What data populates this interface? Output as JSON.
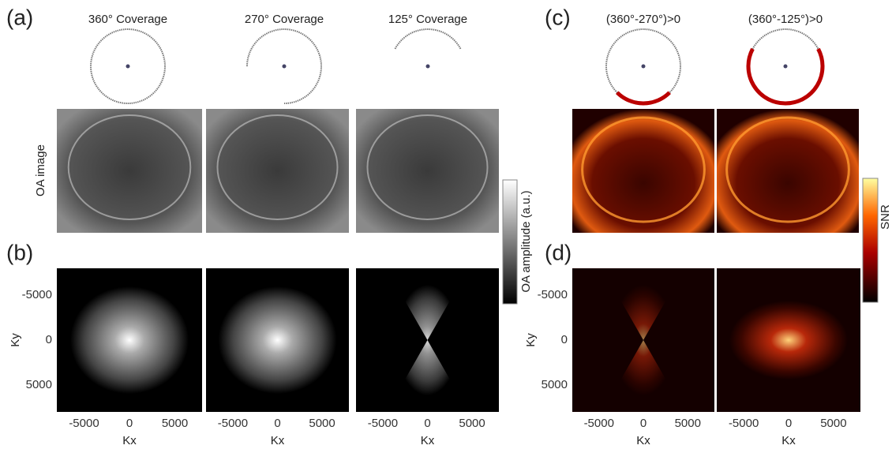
{
  "panel_labels": [
    "(a)",
    "(b)",
    "(c)",
    "(d)"
  ],
  "columns": [
    {
      "title": "360° Coverage"
    },
    {
      "title": "270° Coverage"
    },
    {
      "title": "125° Coverage"
    },
    {
      "title": "(360°-270°)>0"
    },
    {
      "title": "(360°-125°)>0"
    }
  ],
  "row_label": "OA image",
  "colorbar_gray": {
    "label": "OA amplitude (a.u.)"
  },
  "colorbar_snr": {
    "label": "SNR"
  },
  "kspace_axes": {
    "x_label": "Kx",
    "y_label": "Ky",
    "ticks": [
      -5000,
      0,
      5000
    ]
  }
}
